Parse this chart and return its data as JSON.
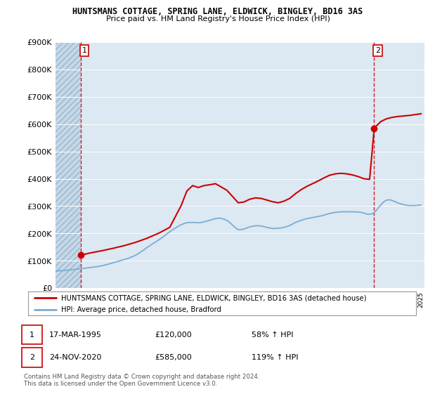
{
  "title_line1": "HUNTSMANS COTTAGE, SPRING LANE, ELDWICK, BINGLEY, BD16 3AS",
  "title_line2": "Price paid vs. HM Land Registry's House Price Index (HPI)",
  "ylim": [
    0,
    900000
  ],
  "yticks": [
    0,
    100000,
    200000,
    300000,
    400000,
    500000,
    600000,
    700000,
    800000,
    900000
  ],
  "ytick_labels": [
    "£0",
    "£100K",
    "£200K",
    "£300K",
    "£400K",
    "£500K",
    "£600K",
    "£700K",
    "£800K",
    "£900K"
  ],
  "hpi_color": "#7aadd4",
  "price_color": "#cc0000",
  "dashed_color": "#cc0000",
  "background_plot": "#dce8f2",
  "background_hatch_color": "#c5d8e8",
  "legend_label_price": "HUNTSMANS COTTAGE, SPRING LANE, ELDWICK, BINGLEY, BD16 3AS (detached house)",
  "legend_label_hpi": "HPI: Average price, detached house, Bradford",
  "annotation1_date": "17-MAR-1995",
  "annotation1_price": "£120,000",
  "annotation1_hpi": "58% ↑ HPI",
  "annotation2_date": "24-NOV-2020",
  "annotation2_price": "£585,000",
  "annotation2_hpi": "119% ↑ HPI",
  "footnote": "Contains HM Land Registry data © Crown copyright and database right 2024.\nThis data is licensed under the Open Government Licence v3.0.",
  "sale1_x": 1995.21,
  "sale1_y": 120000,
  "sale2_x": 2020.9,
  "sale2_y": 585000,
  "xlim_left": 1993,
  "xlim_right": 2025.3,
  "hpi_x": [
    1993.0,
    1993.25,
    1993.5,
    1993.75,
    1994.0,
    1994.25,
    1994.5,
    1994.75,
    1995.0,
    1995.25,
    1995.5,
    1995.75,
    1996.0,
    1996.25,
    1996.5,
    1996.75,
    1997.0,
    1997.25,
    1997.5,
    1997.75,
    1998.0,
    1998.25,
    1998.5,
    1998.75,
    1999.0,
    1999.25,
    1999.5,
    1999.75,
    2000.0,
    2000.25,
    2000.5,
    2000.75,
    2001.0,
    2001.25,
    2001.5,
    2001.75,
    2002.0,
    2002.25,
    2002.5,
    2002.75,
    2003.0,
    2003.25,
    2003.5,
    2003.75,
    2004.0,
    2004.25,
    2004.5,
    2004.75,
    2005.0,
    2005.25,
    2005.5,
    2005.75,
    2006.0,
    2006.25,
    2006.5,
    2006.75,
    2007.0,
    2007.25,
    2007.5,
    2007.75,
    2008.0,
    2008.25,
    2008.5,
    2008.75,
    2009.0,
    2009.25,
    2009.5,
    2009.75,
    2010.0,
    2010.25,
    2010.5,
    2010.75,
    2011.0,
    2011.25,
    2011.5,
    2011.75,
    2012.0,
    2012.25,
    2012.5,
    2012.75,
    2013.0,
    2013.25,
    2013.5,
    2013.75,
    2014.0,
    2014.25,
    2014.5,
    2014.75,
    2015.0,
    2015.25,
    2015.5,
    2015.75,
    2016.0,
    2016.25,
    2016.5,
    2016.75,
    2017.0,
    2017.25,
    2017.5,
    2017.75,
    2018.0,
    2018.25,
    2018.5,
    2018.75,
    2019.0,
    2019.25,
    2019.5,
    2019.75,
    2020.0,
    2020.25,
    2020.5,
    2020.75,
    2021.0,
    2021.25,
    2021.5,
    2021.75,
    2022.0,
    2022.25,
    2022.5,
    2022.75,
    2023.0,
    2023.25,
    2023.5,
    2023.75,
    2024.0,
    2024.25,
    2024.5,
    2024.75,
    2025.0
  ],
  "hpi_y": [
    62000,
    63000,
    63500,
    64000,
    65000,
    66000,
    67000,
    68500,
    70000,
    71000,
    72000,
    73500,
    75000,
    76000,
    77500,
    79000,
    81000,
    83000,
    86000,
    89000,
    92000,
    95000,
    98000,
    101000,
    104000,
    107000,
    111000,
    115000,
    120000,
    126000,
    133000,
    140000,
    148000,
    155000,
    162000,
    168000,
    175000,
    182000,
    190000,
    198000,
    206000,
    213000,
    220000,
    226000,
    232000,
    236000,
    239000,
    240000,
    240000,
    240000,
    239000,
    240000,
    242000,
    245000,
    248000,
    251000,
    254000,
    256000,
    255000,
    252000,
    248000,
    240000,
    230000,
    221000,
    213000,
    214000,
    216000,
    220000,
    224000,
    226000,
    228000,
    228000,
    227000,
    225000,
    222000,
    220000,
    218000,
    218000,
    219000,
    220000,
    222000,
    225000,
    229000,
    234000,
    240000,
    244000,
    248000,
    251000,
    254000,
    256000,
    258000,
    260000,
    262000,
    264000,
    267000,
    270000,
    273000,
    275000,
    277000,
    278000,
    279000,
    279000,
    279000,
    279000,
    279000,
    279000,
    278000,
    277000,
    274000,
    271000,
    270000,
    272000,
    280000,
    293000,
    305000,
    316000,
    322000,
    323000,
    320000,
    316000,
    311000,
    308000,
    305000,
    303000,
    302000,
    302000,
    302000,
    303000,
    304000
  ],
  "price_x": [
    1995.21,
    1996.0,
    1997.0,
    1998.0,
    1999.0,
    2000.0,
    2001.0,
    2002.0,
    2003.0,
    2003.5,
    2004.0,
    2004.5,
    2005.0,
    2005.5,
    2006.0,
    2006.5,
    2007.0,
    2007.5,
    2008.0,
    2008.5,
    2009.0,
    2009.5,
    2010.0,
    2010.5,
    2011.0,
    2011.5,
    2012.0,
    2012.5,
    2013.0,
    2013.5,
    2014.0,
    2014.5,
    2015.0,
    2015.5,
    2016.0,
    2016.5,
    2017.0,
    2017.5,
    2018.0,
    2018.5,
    2019.0,
    2019.5,
    2020.0,
    2020.5,
    2020.9,
    2021.0,
    2021.5,
    2022.0,
    2022.5,
    2023.0,
    2023.5,
    2024.0,
    2024.5,
    2025.0
  ],
  "price_y": [
    120000,
    128000,
    136000,
    145000,
    155000,
    167000,
    182000,
    200000,
    222000,
    262000,
    302000,
    355000,
    375000,
    368000,
    375000,
    378000,
    382000,
    370000,
    358000,
    335000,
    312000,
    315000,
    325000,
    330000,
    328000,
    322000,
    316000,
    312000,
    318000,
    328000,
    345000,
    360000,
    372000,
    382000,
    392000,
    403000,
    413000,
    418000,
    420000,
    418000,
    414000,
    408000,
    400000,
    398000,
    585000,
    590000,
    610000,
    620000,
    625000,
    628000,
    630000,
    632000,
    635000,
    638000
  ]
}
